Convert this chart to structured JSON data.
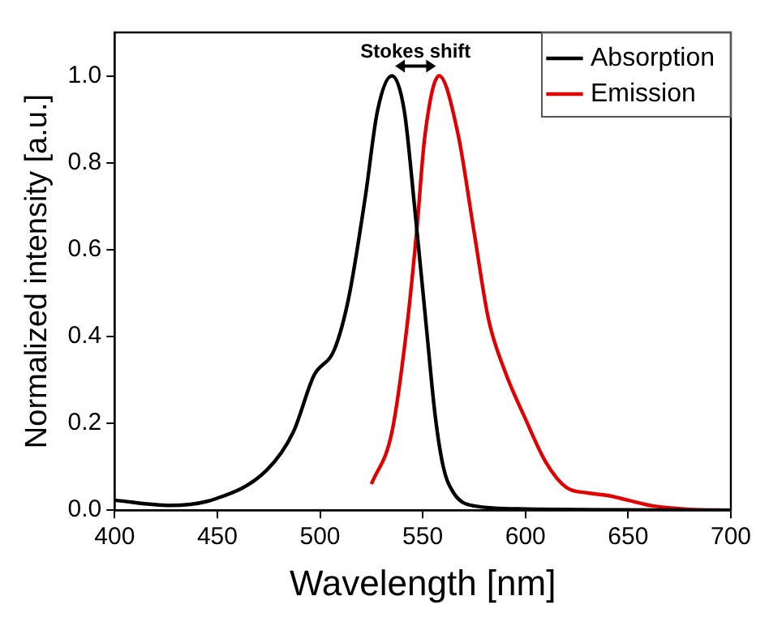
{
  "chart_data": {
    "type": "line",
    "xlabel": "Wavelength [nm]",
    "ylabel": "Normalized intensity [a.u.]",
    "xlim": [
      400,
      700
    ],
    "xticks": [
      400,
      450,
      500,
      550,
      600,
      650,
      700
    ],
    "ylim": [
      0,
      1.1
    ],
    "yticks": [
      {
        "value": 0,
        "label": "0.0"
      },
      {
        "value": 0.2,
        "label": "0.2"
      },
      {
        "value": 0.4,
        "label": "0.4"
      },
      {
        "value": 0.6,
        "label": "0.6"
      },
      {
        "value": 0.8,
        "label": "0.8"
      },
      {
        "value": 1.0,
        "label": "1.0"
      }
    ],
    "grid": false,
    "legend": "top right",
    "marker": "none",
    "line_style": "solid",
    "annotations": [
      "Stokes shift"
    ],
    "series": [
      {
        "name": "Absorption",
        "color": "#000000",
        "x": [
          400,
          427,
          449,
          474,
          487,
          497,
          507,
          514,
          522,
          528,
          535,
          541,
          546,
          552,
          556,
          560,
          565,
          575,
          600,
          700
        ],
        "values": [
          0.023,
          0.011,
          0.026,
          0.092,
          0.18,
          0.31,
          0.37,
          0.49,
          0.72,
          0.92,
          1.0,
          0.92,
          0.7,
          0.41,
          0.22,
          0.1,
          0.04,
          0.01,
          0.003,
          0
        ]
      },
      {
        "name": "Emission",
        "color": "#e00000",
        "x": [
          525,
          535,
          542,
          547,
          551,
          558,
          567,
          575,
          582,
          590,
          600,
          610,
          620,
          630,
          640,
          650,
          662,
          680,
          699
        ],
        "values": [
          0.06,
          0.18,
          0.41,
          0.64,
          0.86,
          1.0,
          0.87,
          0.64,
          0.44,
          0.32,
          0.21,
          0.11,
          0.052,
          0.04,
          0.034,
          0.023,
          0.01,
          0.002,
          0
        ]
      }
    ]
  }
}
